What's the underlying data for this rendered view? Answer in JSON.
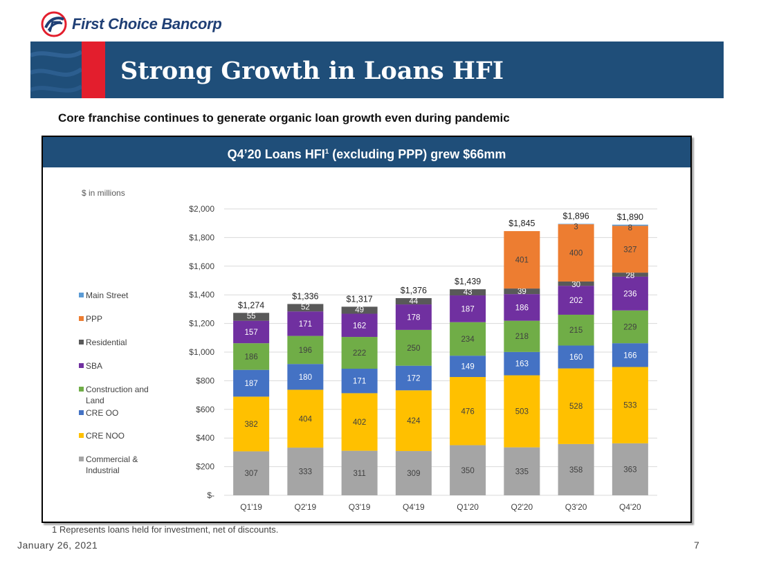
{
  "brand": {
    "name": "First Choice Bancorp",
    "logo_icon": "fc-swoosh-logo"
  },
  "slide": {
    "title": "Strong Growth in Loans HFI",
    "subtitle": "Core franchise continues to generate organic loan growth even during pandemic",
    "footnote": "1  Represents loans held for investment, net of discounts.",
    "date": "January 26, 2021",
    "page_number": "7"
  },
  "colors": {
    "title_bar": "#1f4e79",
    "accent_red": "#e31e2d",
    "main_street": "#5b9bd5",
    "ppp": "#ed7d31",
    "residential": "#595959",
    "sba": "#7030a0",
    "construction": "#70ad47",
    "cre_oo": "#4472c4",
    "cre_noo": "#ffc000",
    "commercial": "#a5a5a5"
  },
  "chart_data": {
    "type": "bar",
    "stacked": true,
    "title_prefix": "Q4’20 Loans HFI",
    "title_sup": "1",
    "title_suffix": " (excluding PPP) grew $66mm",
    "units_label": "$ in millions",
    "categories": [
      "Q1'19",
      "Q2'19",
      "Q3'19",
      "Q4'19",
      "Q1'20",
      "Q2'20",
      "Q3'20",
      "Q4'20"
    ],
    "ylim": [
      0,
      2000
    ],
    "yticks": [
      0,
      200,
      400,
      600,
      800,
      1000,
      1200,
      1400,
      1600,
      1800,
      2000
    ],
    "ytick_labels": [
      "$-",
      "$200",
      "$400",
      "$600",
      "$800",
      "$1,000",
      "$1,200",
      "$1,400",
      "$1,600",
      "$1,800",
      "$2,000"
    ],
    "gridlines": true,
    "legend_position": "left",
    "series": [
      {
        "name": "Commercial & Industrial",
        "values": [
          307,
          333,
          311,
          309,
          350,
          335,
          358,
          363
        ]
      },
      {
        "name": "CRE NOO",
        "values": [
          382,
          404,
          402,
          424,
          476,
          503,
          528,
          533
        ]
      },
      {
        "name": "CRE OO",
        "values": [
          187,
          180,
          171,
          172,
          149,
          163,
          160,
          166
        ]
      },
      {
        "name": "Construction and Land",
        "values": [
          186,
          196,
          222,
          250,
          234,
          218,
          215,
          229
        ]
      },
      {
        "name": "SBA",
        "values": [
          157,
          171,
          162,
          178,
          187,
          186,
          202,
          236
        ]
      },
      {
        "name": "Residential",
        "values": [
          55,
          52,
          49,
          44,
          43,
          39,
          30,
          28
        ]
      },
      {
        "name": "PPP",
        "values": [
          0,
          0,
          0,
          0,
          0,
          401,
          400,
          327
        ]
      },
      {
        "name": "Main Street",
        "values": [
          0,
          0,
          0,
          0,
          0,
          0,
          3,
          8
        ]
      }
    ],
    "totals": [
      1274,
      1336,
      1317,
      1376,
      1439,
      1845,
      1896,
      1890
    ],
    "total_labels": [
      "$1,274",
      "$1,336",
      "$1,317",
      "$1,376",
      "$1,439",
      "$1,845",
      "$1,896",
      "$1,890"
    ],
    "legend": [
      {
        "name": "Main Street",
        "lines": [
          "Main Street"
        ]
      },
      {
        "name": "PPP",
        "lines": [
          "PPP"
        ]
      },
      {
        "name": "Residential",
        "lines": [
          "Residential"
        ]
      },
      {
        "name": "SBA",
        "lines": [
          "SBA"
        ]
      },
      {
        "name": "Construction and Land",
        "lines": [
          "Construction and",
          "Land"
        ]
      },
      {
        "name": "CRE OO",
        "lines": [
          "CRE OO"
        ]
      },
      {
        "name": "CRE NOO",
        "lines": [
          "CRE NOO"
        ]
      },
      {
        "name": "Commercial & Industrial",
        "lines": [
          "Commercial &",
          "Industrial"
        ]
      }
    ]
  }
}
